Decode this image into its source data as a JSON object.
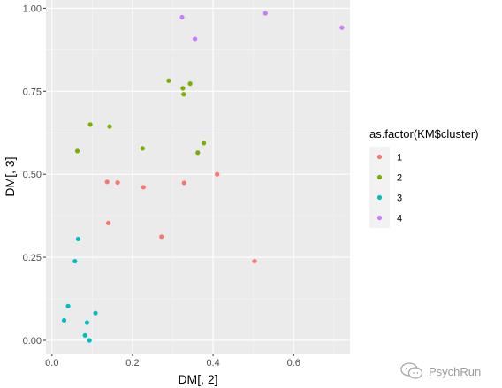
{
  "chart_data": {
    "type": "scatter",
    "xlabel": "DM[, 2]",
    "ylabel": "DM[, 3]",
    "xlim": [
      -0.015,
      0.74
    ],
    "ylim": [
      -0.04,
      1.025
    ],
    "x_ticks": [
      0.0,
      0.2,
      0.4,
      0.6
    ],
    "x_tick_labels": [
      "0.0",
      "0.2",
      "0.4",
      "0.6"
    ],
    "y_ticks": [
      0.0,
      0.25,
      0.5,
      0.75,
      1.0
    ],
    "y_tick_labels": [
      "0.00",
      "0.25",
      "0.50",
      "0.75",
      "1.00"
    ],
    "grid": true,
    "legend": {
      "title": "as.factor(KM$cluster)",
      "placement": "right"
    },
    "series": [
      {
        "name": "1",
        "color": "#F8766D",
        "points": [
          [
            0.137,
            0.477
          ],
          [
            0.163,
            0.475
          ],
          [
            0.227,
            0.461
          ],
          [
            0.328,
            0.474
          ],
          [
            0.41,
            0.5
          ],
          [
            0.14,
            0.353
          ],
          [
            0.272,
            0.312
          ],
          [
            0.503,
            0.238
          ]
        ]
      },
      {
        "name": "2",
        "color": "#7CAE00",
        "points": [
          [
            0.063,
            0.57
          ],
          [
            0.095,
            0.65
          ],
          [
            0.143,
            0.644
          ],
          [
            0.225,
            0.578
          ],
          [
            0.29,
            0.782
          ],
          [
            0.325,
            0.759
          ],
          [
            0.343,
            0.773
          ],
          [
            0.327,
            0.741
          ],
          [
            0.377,
            0.594
          ],
          [
            0.362,
            0.565
          ]
        ]
      },
      {
        "name": "3",
        "color": "#00BFC4",
        "points": [
          [
            0.065,
            0.305
          ],
          [
            0.057,
            0.238
          ],
          [
            0.04,
            0.103
          ],
          [
            0.03,
            0.06
          ],
          [
            0.108,
            0.082
          ],
          [
            0.087,
            0.053
          ],
          [
            0.082,
            0.015
          ],
          [
            0.093,
            0.0
          ]
        ]
      },
      {
        "name": "4",
        "color": "#C77CFF",
        "points": [
          [
            0.323,
            0.973
          ],
          [
            0.355,
            0.908
          ],
          [
            0.53,
            0.985
          ],
          [
            0.72,
            0.942
          ]
        ]
      }
    ]
  },
  "watermark": {
    "text": "PsychRun",
    "icon": "wechat-icon"
  }
}
